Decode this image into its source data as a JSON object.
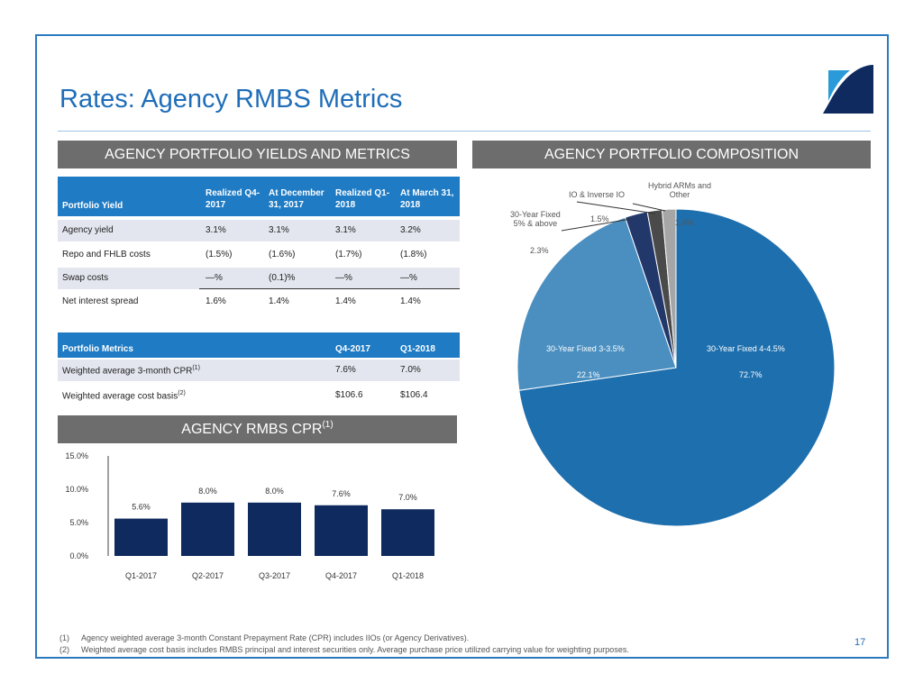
{
  "title": "Rates: Agency RMBS Metrics",
  "page_number": "17",
  "colors": {
    "accent": "#1f6db8",
    "table_header": "#1f7bc4",
    "section_header": "#6d6d6d",
    "bar": "#0f2a5e"
  },
  "sections": {
    "yields": "AGENCY PORTFOLIO YIELDS AND METRICS",
    "composition": "AGENCY PORTFOLIO COMPOSITION",
    "cpr": "AGENCY RMBS CPR",
    "cpr_sup": "(1)"
  },
  "yield_table": {
    "headers": [
      "Portfolio Yield",
      "Realized Q4-2017",
      "At December 31, 2017",
      "Realized Q1-2018",
      "At March 31, 2018"
    ],
    "rows": [
      [
        "Agency yield",
        "3.1%",
        "3.1%",
        "3.1%",
        "3.2%"
      ],
      [
        "Repo and FHLB costs",
        "(1.5%)",
        "(1.6%)",
        "(1.7%)",
        "(1.8%)"
      ],
      [
        "Swap costs",
        "—%",
        "(0.1)%",
        "—%",
        "—%"
      ],
      [
        "Net interest spread",
        "1.6%",
        "1.4%",
        "1.4%",
        "1.4%"
      ]
    ]
  },
  "metrics_table": {
    "headers": [
      "Portfolio Metrics",
      "Q4-2017",
      "Q1-2018"
    ],
    "rows": [
      {
        "label": "Weighted average 3-month CPR",
        "sup": "(1)",
        "values": [
          "7.6%",
          "7.0%"
        ]
      },
      {
        "label": "Weighted average cost basis",
        "sup": "(2)",
        "values": [
          "$106.6",
          "$106.4"
        ]
      }
    ]
  },
  "chart_data": [
    {
      "type": "bar",
      "title": "AGENCY RMBS CPR(1)",
      "categories": [
        "Q1-2017",
        "Q2-2017",
        "Q3-2017",
        "Q4-2017",
        "Q1-2018"
      ],
      "values": [
        5.6,
        8.0,
        8.0,
        7.6,
        7.0
      ],
      "value_labels": [
        "5.6%",
        "8.0%",
        "8.0%",
        "7.6%",
        "7.0%"
      ],
      "yticks": [
        "0.0%",
        "5.0%",
        "10.0%",
        "15.0%"
      ],
      "ylim": [
        0,
        15
      ],
      "xlabel": "",
      "ylabel": "",
      "grid": false,
      "color": "#0f2a5e"
    },
    {
      "type": "pie",
      "title": "AGENCY PORTFOLIO COMPOSITION",
      "slices": [
        {
          "label": "30-Year Fixed 4-4.5%",
          "value": 72.7,
          "value_label": "72.7%",
          "color": "#1e6fae"
        },
        {
          "label": "30-Year Fixed 3-3.5%",
          "value": 22.1,
          "value_label": "22.1%",
          "color": "#4a8fc0"
        },
        {
          "label": "30-Year Fixed 5% & above",
          "value": 2.3,
          "value_label": "2.3%",
          "color": "#22386b"
        },
        {
          "label": "IO & Inverse IO",
          "value": 1.5,
          "value_label": "1.5%",
          "color": "#4a4a4a"
        },
        {
          "label": "Hybrid ARMs and Other",
          "value": 1.4,
          "value_label": "1.4%",
          "color": "#a6a6a6"
        }
      ]
    }
  ],
  "pie_labels": {
    "fixed_4_45": "30-Year Fixed 4-4.5%",
    "fixed_4_45_val": "72.7%",
    "fixed_3_35": "30-Year Fixed 3-3.5%",
    "fixed_3_35_val": "22.1%",
    "fixed_5_line1": "30-Year Fixed",
    "fixed_5_line2": "5% & above",
    "fixed_5_val": "2.3%",
    "io": "IO & Inverse IO",
    "io_val": "1.5%",
    "hybrid_line1": "Hybrid ARMs and",
    "hybrid_line2": "Other",
    "hybrid_val": "1.4%"
  },
  "footnotes": [
    {
      "num": "(1)",
      "text": "Agency weighted average 3-month Constant Prepayment Rate (CPR) includes IIOs (or Agency Derivatives)."
    },
    {
      "num": "(2)",
      "text": "Weighted average cost basis includes RMBS principal and interest securities only.  Average purchase price utilized carrying value for weighting purposes."
    }
  ]
}
